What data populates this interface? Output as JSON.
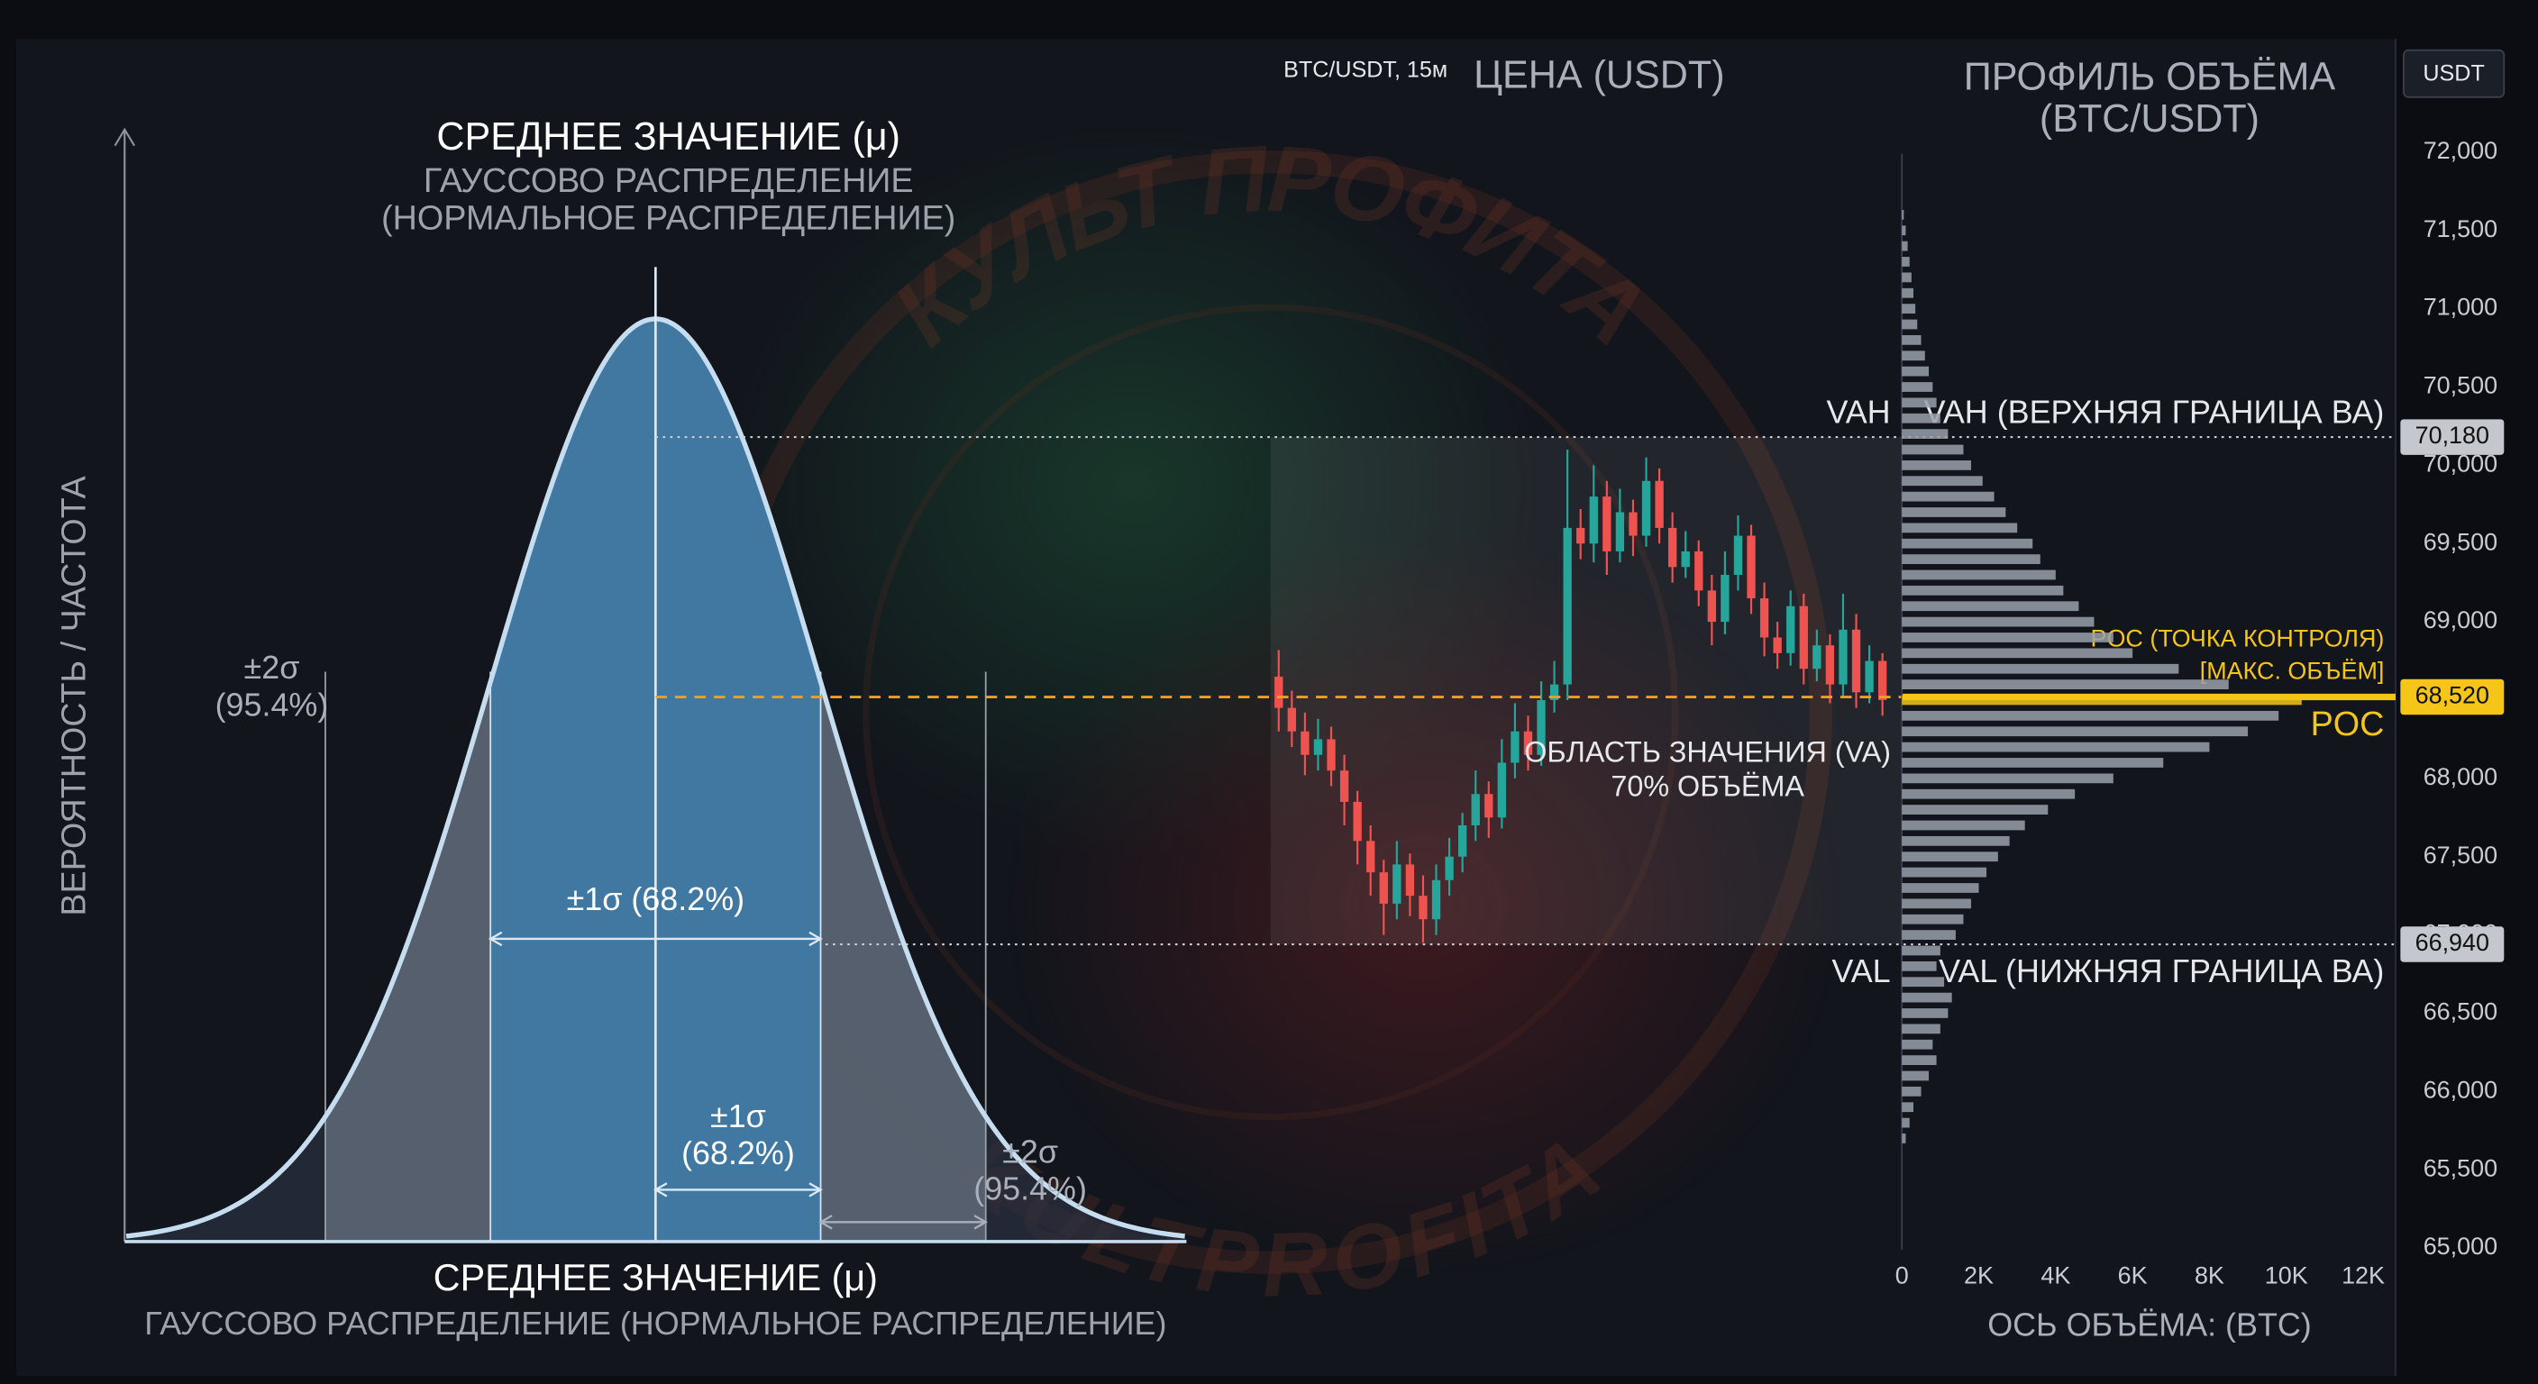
{
  "watermark": [
    "КУЛЬТ ПРОФИТА",
    "KULTPROFITA"
  ],
  "chart_data": [
    {
      "type": "distribution",
      "title": "СРЕДНЕЕ ЗНАЧЕНИЕ (μ)",
      "subtitle": [
        "ГАУССОВО РАСПРЕДЕЛЕНИЕ",
        "(НОРМАЛЬНОЕ РАСПРЕДЕЛЕНИЕ)"
      ],
      "ylabel": "ВЕРОЯТНОСТЬ / ЧАСТОТА",
      "xlabel": "СРЕДНЕЕ ЗНАЧЕНИЕ (μ)",
      "xsublabel": "ГАУССОВО РАСПРЕДЕЛЕНИЕ (НОРМАЛЬНОЕ РАСПРЕДЕЛЕНИЕ)",
      "bands": [
        {
          "sigma": 1,
          "label": "±1σ (68.2%)",
          "inner_label": [
            "±1σ",
            "(68.2%)"
          ],
          "color": "#3c7cac"
        },
        {
          "sigma": 2,
          "label": [
            "±2σ",
            "(95.4%)"
          ],
          "color": "#5f6877"
        }
      ]
    },
    {
      "type": "candlestick",
      "title": "BTC/USDT, 15м",
      "subtitle": "ЦЕНА (USDT)",
      "currency": "USDT",
      "open": [
        68650,
        68450,
        68300,
        68150,
        68250,
        68050,
        67850,
        67600,
        67400,
        67200,
        67450,
        67250,
        67100,
        67350,
        67500,
        67700,
        67900,
        67750,
        68100,
        68300,
        68150,
        68500,
        68600,
        69600,
        69500,
        69800,
        69450,
        69700,
        69550,
        69900,
        69600,
        69350,
        69450,
        69200,
        69000,
        69300,
        69550,
        69150,
        68900,
        68800,
        69100,
        68700,
        68850,
        68600,
        68950,
        68550,
        68750
      ],
      "high": [
        68820,
        68560,
        68420,
        68380,
        68330,
        68150,
        67920,
        67700,
        67480,
        67600,
        67520,
        67380,
        67450,
        67620,
        67780,
        68050,
        67980,
        68250,
        68480,
        68400,
        68620,
        68750,
        70100,
        69720,
        70000,
        69900,
        69850,
        69780,
        70050,
        69980,
        69700,
        69580,
        69520,
        69300,
        69450,
        69680,
        69620,
        69250,
        69000,
        69200,
        69180,
        68950,
        68920,
        69180,
        69050,
        68850,
        68800
      ],
      "low": [
        68300,
        68200,
        68020,
        68050,
        67950,
        67700,
        67450,
        67250,
        67000,
        67100,
        67120,
        66950,
        67000,
        67250,
        67400,
        67600,
        67620,
        67680,
        68000,
        68050,
        68080,
        68420,
        68500,
        69400,
        69380,
        69300,
        69380,
        69420,
        69480,
        69500,
        69250,
        69280,
        69100,
        68850,
        68920,
        69200,
        69050,
        68780,
        68700,
        68720,
        68600,
        68620,
        68480,
        68520,
        68450,
        68480,
        68400
      ],
      "close": [
        68450,
        68300,
        68150,
        68250,
        68050,
        67850,
        67600,
        67400,
        67200,
        67450,
        67250,
        67100,
        67350,
        67500,
        67700,
        67900,
        67750,
        68100,
        68300,
        68150,
        68500,
        68600,
        69600,
        69500,
        69800,
        69450,
        69700,
        69550,
        69900,
        69600,
        69350,
        69450,
        69200,
        69000,
        69300,
        69550,
        69150,
        68900,
        68800,
        69100,
        68700,
        68850,
        68600,
        68950,
        68550,
        68750,
        68500
      ],
      "up_color": "#26a69a",
      "down_color": "#ef5350",
      "ylim": [
        65000,
        72000
      ],
      "yticks": [
        {
          "value": 65000,
          "label": "65,000"
        },
        {
          "value": 65500,
          "label": "65,500"
        },
        {
          "value": 66000,
          "label": "66,000"
        },
        {
          "value": 66500,
          "label": "66,500"
        },
        {
          "value": 67000,
          "label": "67,000"
        },
        {
          "value": 67500,
          "label": "67,500"
        },
        {
          "value": 68000,
          "label": "68,000"
        },
        {
          "value": 68500,
          "label": "68,500"
        },
        {
          "value": 69000,
          "label": "69,000"
        },
        {
          "value": 69500,
          "label": "69,500"
        },
        {
          "value": 70000,
          "label": "70,000"
        },
        {
          "value": 70500,
          "label": "70,500"
        },
        {
          "value": 71000,
          "label": "71,000"
        },
        {
          "value": 71500,
          "label": "71,500"
        },
        {
          "value": 72000,
          "label": "72,000"
        }
      ],
      "levels": [
        {
          "name": "VAH",
          "value": 70180,
          "label": "70,180",
          "text": [
            "VAH (ВЕРХНЯЯ ГРАНИЦА ВА)"
          ],
          "color": "#c9ccd2"
        },
        {
          "name": "POC",
          "value": 68520,
          "label": "68,520",
          "text": [
            "POC (ТОЧКА КОНТРОЛЯ)",
            "[МАКС. ОБЪЁМ]"
          ],
          "color": "#f5c518"
        },
        {
          "name": "VAL",
          "value": 66940,
          "label": "66,940",
          "text": [
            "VAL (НИЖНЯЯ ГРАНИЦА ВА)"
          ],
          "color": "#c9ccd2"
        }
      ],
      "area_label": [
        "ОБЛАСТЬ ЗНАЧЕНИЯ (VA)",
        "70% ОБЪЁМА"
      ]
    },
    {
      "type": "profile",
      "title": [
        "ПРОФИЛЬ ОБЪЁМА",
        "(BTC/USDT)"
      ],
      "xlabel": "ОСЬ ОБЪЁМА: (BTC)",
      "y": [
        65700,
        65800,
        65900,
        66000,
        66100,
        66200,
        66300,
        66400,
        66500,
        66600,
        66700,
        66800,
        66900,
        67000,
        67100,
        67200,
        67300,
        67400,
        67500,
        67600,
        67700,
        67800,
        67900,
        68000,
        68100,
        68200,
        68300,
        68400,
        68500,
        68600,
        68700,
        68800,
        68900,
        69000,
        69100,
        69200,
        69300,
        69400,
        69500,
        69600,
        69700,
        69800,
        69900,
        70000,
        70100,
        70200,
        70300,
        70400,
        70500,
        70600,
        70700,
        70800,
        70900,
        71000,
        71100,
        71200,
        71300,
        71400,
        71500,
        71600
      ],
      "values": [
        100,
        200,
        300,
        500,
        700,
        900,
        800,
        1000,
        1200,
        1300,
        1100,
        900,
        1000,
        1400,
        1600,
        1800,
        2000,
        2200,
        2500,
        2800,
        3200,
        3800,
        4500,
        5500,
        6800,
        8000,
        9000,
        9800,
        10400,
        8500,
        7200,
        6000,
        5500,
        5000,
        4600,
        4200,
        4000,
        3600,
        3400,
        3000,
        2700,
        2400,
        2100,
        1800,
        1600,
        1200,
        1000,
        900,
        800,
        700,
        600,
        500,
        400,
        350,
        300,
        250,
        200,
        150,
        100,
        50
      ],
      "color": "#9aa0aa",
      "poc_color": "#f5c518",
      "xlim": [
        0,
        12000
      ],
      "xticks": [
        0,
        {
          "value": 2000,
          "label": "2K"
        },
        {
          "value": 4000,
          "label": "4K"
        },
        {
          "value": 6000,
          "label": "6K"
        },
        {
          "value": 8000,
          "label": "8K"
        },
        {
          "value": 10000,
          "label": "10K"
        },
        {
          "value": 12000,
          "label": "12K"
        }
      ]
    }
  ]
}
